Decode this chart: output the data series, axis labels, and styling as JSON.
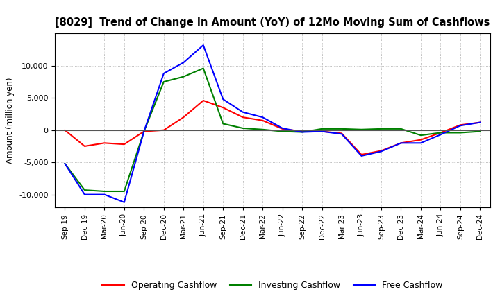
{
  "title": "[8029]  Trend of Change in Amount (YoY) of 12Mo Moving Sum of Cashflows",
  "ylabel": "Amount (million yen)",
  "x_labels": [
    "Sep-19",
    "Dec-19",
    "Mar-20",
    "Jun-20",
    "Sep-20",
    "Dec-20",
    "Mar-21",
    "Jun-21",
    "Sep-21",
    "Dec-21",
    "Mar-22",
    "Jun-22",
    "Sep-22",
    "Dec-22",
    "Mar-23",
    "Jun-23",
    "Sep-23",
    "Dec-23",
    "Mar-24",
    "Jun-24",
    "Sep-24",
    "Dec-24"
  ],
  "operating": [
    0,
    -2500,
    -2000,
    -2200,
    -200,
    0,
    2000,
    4600,
    3500,
    2000,
    1500,
    200,
    -200,
    -200,
    -500,
    -3800,
    -3200,
    -2000,
    -1500,
    -400,
    800,
    1200
  ],
  "investing": [
    -5200,
    -9300,
    -9500,
    -9500,
    -200,
    7500,
    8300,
    9600,
    1000,
    300,
    100,
    -200,
    -300,
    200,
    200,
    100,
    200,
    200,
    -800,
    -400,
    -400,
    -200
  ],
  "free": [
    -5200,
    -10000,
    -10000,
    -11200,
    -200,
    8800,
    10500,
    13200,
    4800,
    2800,
    2000,
    300,
    -300,
    -200,
    -600,
    -4000,
    -3300,
    -2000,
    -2000,
    -700,
    700,
    1200
  ],
  "operating_color": "#ff0000",
  "investing_color": "#008000",
  "free_color": "#0000ff",
  "ylim": [
    -12000,
    15000
  ],
  "yticks": [
    -10000,
    -5000,
    0,
    5000,
    10000
  ],
  "background_color": "#ffffff",
  "grid_color": "#aaaaaa"
}
